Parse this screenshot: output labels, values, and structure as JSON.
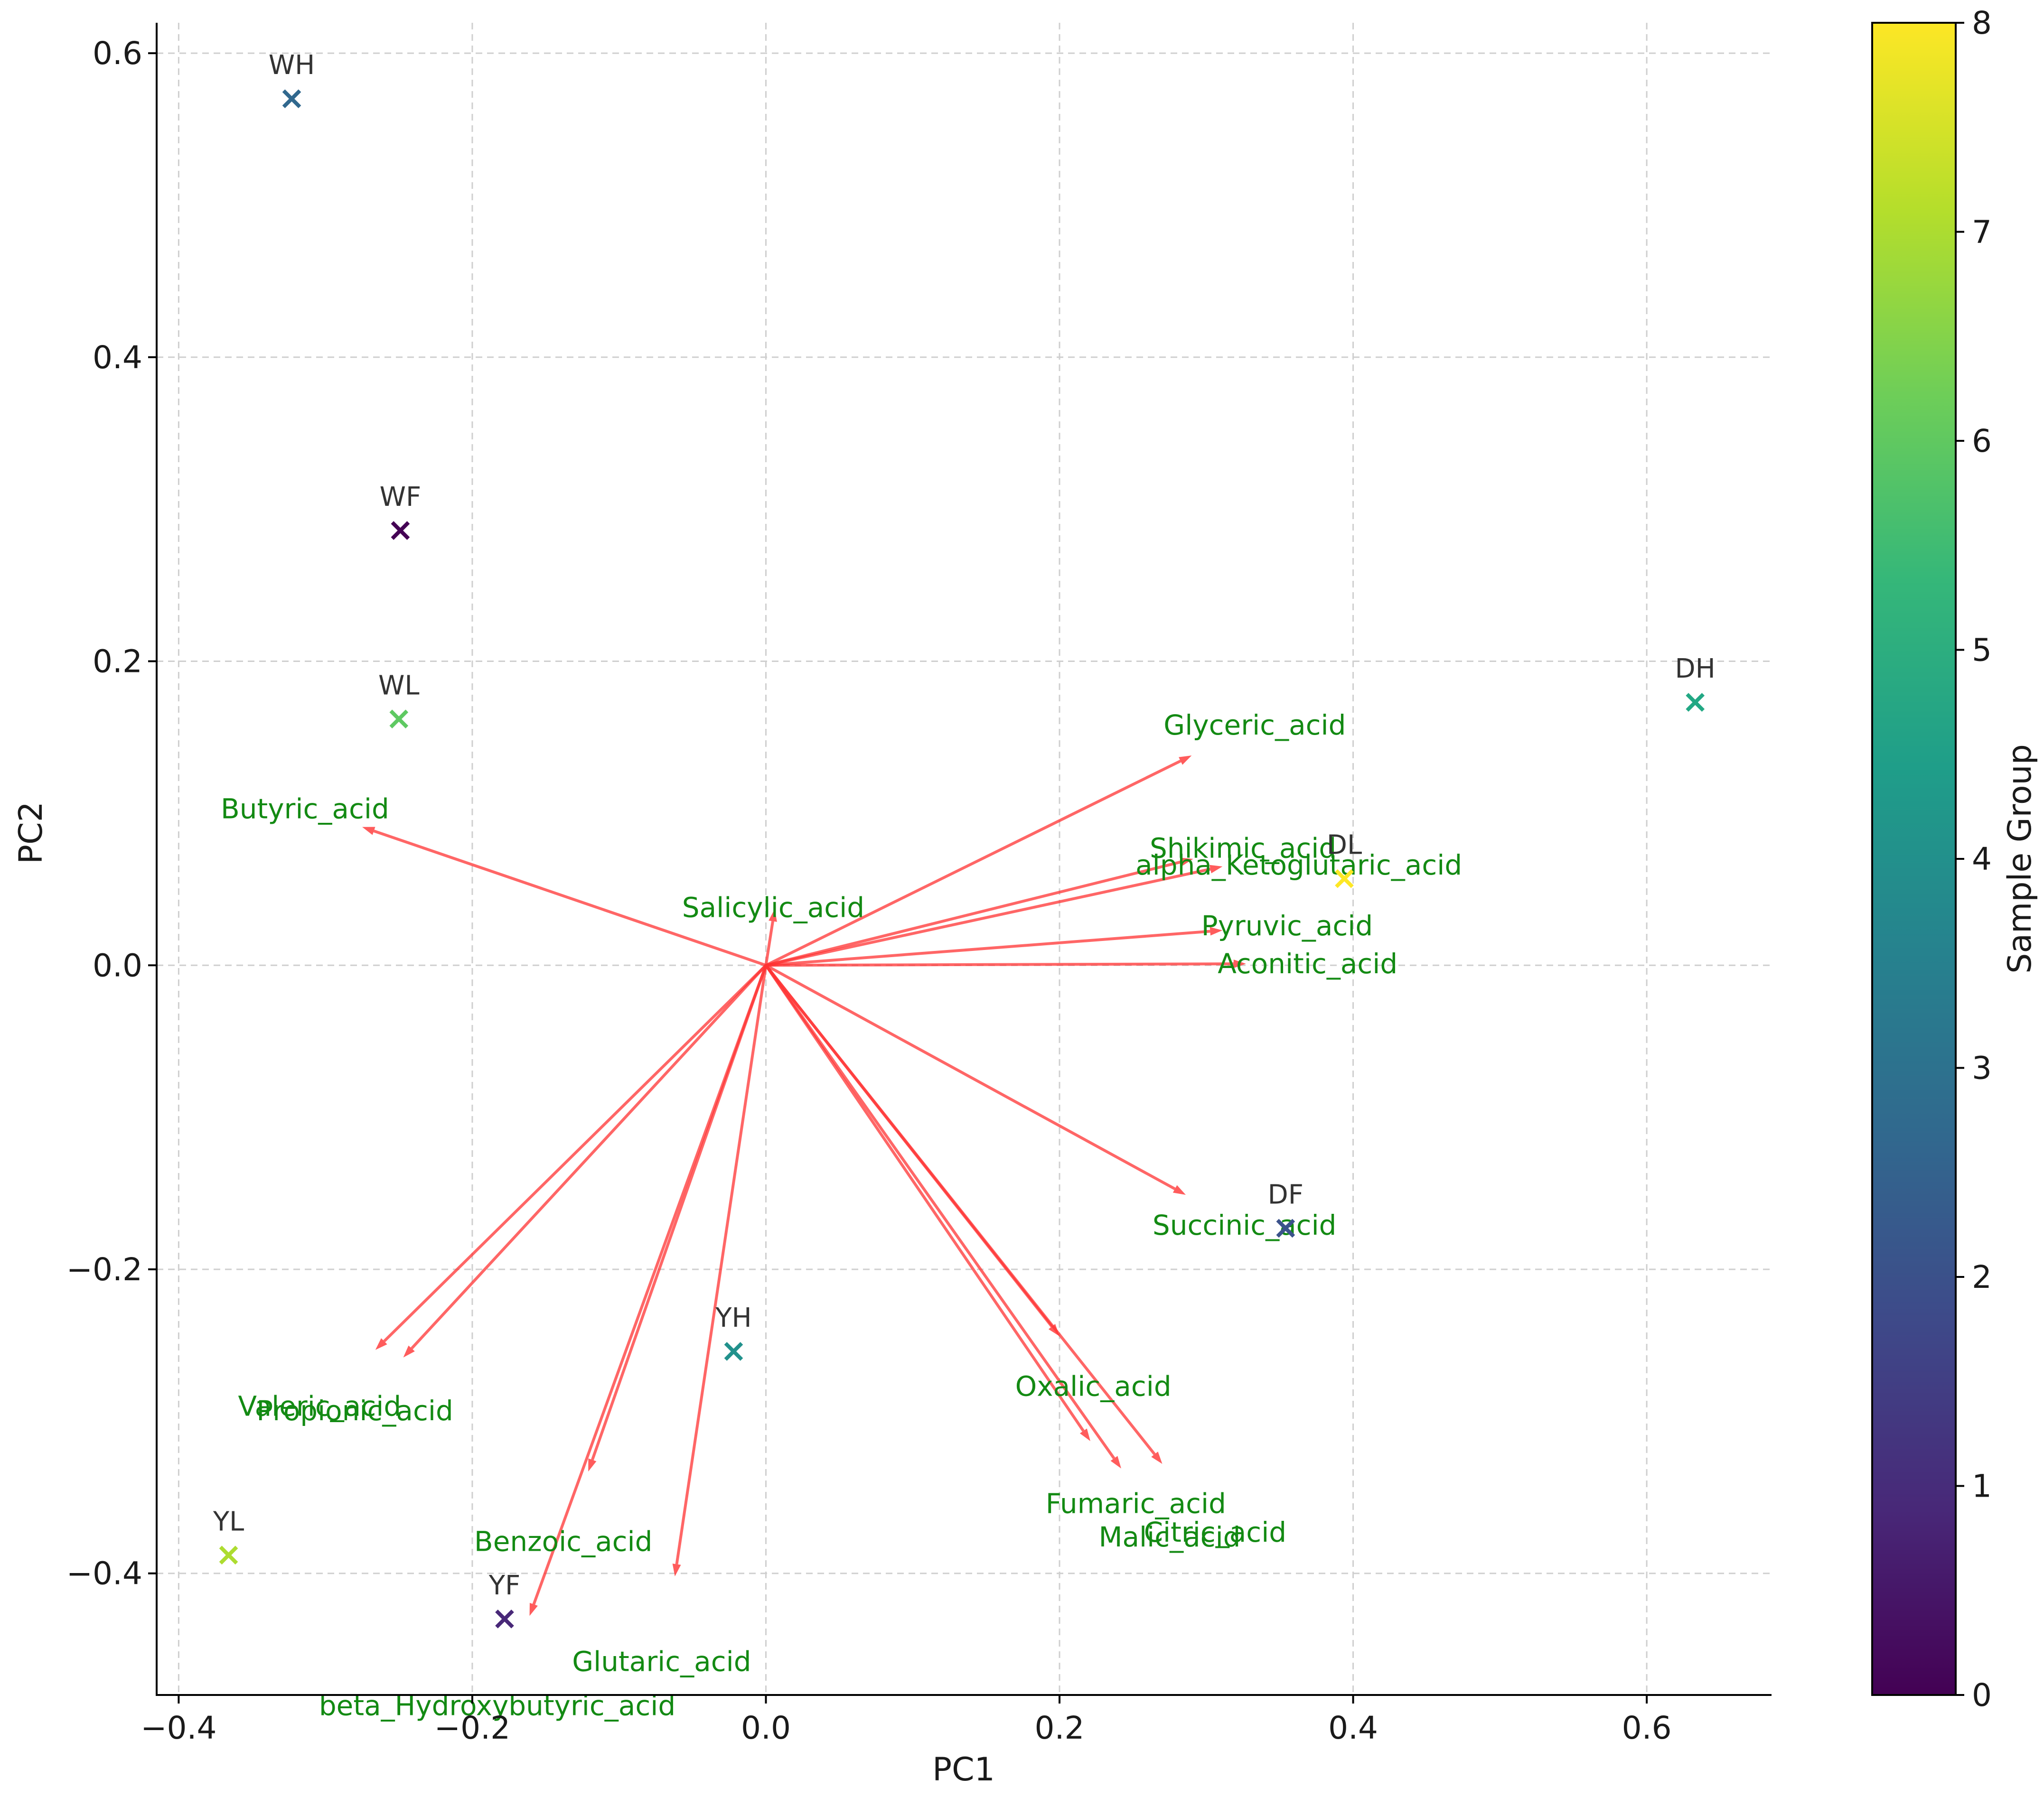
{
  "chart_data": {
    "type": "scatter",
    "title": "",
    "xlabel": "PC1",
    "ylabel": "PC2",
    "xlim": [
      -0.415,
      0.685
    ],
    "ylim": [
      -0.48,
      0.62
    ],
    "xticks": [
      -0.4,
      -0.2,
      0.0,
      0.2,
      0.4,
      0.6
    ],
    "xtick_labels": [
      "−0.4",
      "−0.2",
      "0.0",
      "0.2",
      "0.4",
      "0.6"
    ],
    "yticks": [
      -0.4,
      -0.2,
      0.0,
      0.2,
      0.4,
      0.6
    ],
    "ytick_labels": [
      "−0.4",
      "−0.2",
      "0.0",
      "0.2",
      "0.4",
      "0.6"
    ],
    "grid": true,
    "samples": [
      {
        "label": "WH",
        "x": -0.323,
        "y": 0.57,
        "group": 3,
        "color": "#31688e"
      },
      {
        "label": "WF",
        "x": -0.249,
        "y": 0.286,
        "group": 0,
        "color": "#440154"
      },
      {
        "label": "WL",
        "x": -0.25,
        "y": 0.162,
        "group": 6,
        "color": "#5ec962"
      },
      {
        "label": "DH",
        "x": 0.633,
        "y": 0.173,
        "group": 5,
        "color": "#22a884"
      },
      {
        "label": "DL",
        "x": 0.394,
        "y": 0.057,
        "group": 8,
        "color": "#fde725"
      },
      {
        "label": "DF",
        "x": 0.354,
        "y": -0.173,
        "group": 2,
        "color": "#3b528b"
      },
      {
        "label": "YH",
        "x": -0.022,
        "y": -0.254,
        "group": 4,
        "color": "#21918c"
      },
      {
        "label": "YL",
        "x": -0.366,
        "y": -0.388,
        "group": 7,
        "color": "#addc30"
      },
      {
        "label": "YF",
        "x": -0.178,
        "y": -0.43,
        "group": 1,
        "color": "#482878"
      }
    ],
    "loadings": [
      {
        "label": "Glyceric_acid",
        "x": 0.29,
        "y": 0.138,
        "tx": 0.333,
        "ty": 0.158
      },
      {
        "label": "Butyric_acid",
        "x": -0.275,
        "y": 0.091,
        "tx": -0.314,
        "ty": 0.103
      },
      {
        "label": "Shikimic_acid",
        "x": 0.291,
        "y": 0.07,
        "tx": 0.325,
        "ty": 0.077
      },
      {
        "label": "alpha_Ketoglutaric_acid",
        "x": 0.311,
        "y": 0.065,
        "tx": 0.363,
        "ty": 0.066
      },
      {
        "label": "Salicylic_acid",
        "x": 0.006,
        "y": 0.037,
        "tx": 0.005,
        "ty": 0.038
      },
      {
        "label": "Pyruvic_acid",
        "x": 0.311,
        "y": 0.023,
        "tx": 0.355,
        "ty": 0.026
      },
      {
        "label": "Aconitic_acid",
        "x": 0.327,
        "y": 0.001,
        "tx": 0.369,
        "ty": 0.001
      },
      {
        "label": "Succinic_acid",
        "x": 0.286,
        "y": -0.151,
        "tx": 0.326,
        "ty": -0.171
      },
      {
        "label": "Oxalic_acid",
        "x": 0.2,
        "y": -0.244,
        "tx": 0.223,
        "ty": -0.277
      },
      {
        "label": "Fumaric_acid",
        "x": 0.221,
        "y": -0.313,
        "tx": 0.252,
        "ty": -0.354
      },
      {
        "label": "Citric_acid",
        "x": 0.27,
        "y": -0.328,
        "tx": 0.306,
        "ty": -0.373
      },
      {
        "label": "Malic_acid",
        "x": 0.242,
        "y": -0.331,
        "tx": 0.275,
        "ty": -0.376
      },
      {
        "label": "Valeric_acid",
        "x": -0.266,
        "y": -0.253,
        "tx": -0.304,
        "ty": -0.29
      },
      {
        "label": "Propionic_acid",
        "x": -0.247,
        "y": -0.258,
        "tx": -0.28,
        "ty": -0.293
      },
      {
        "label": "Benzoic_acid",
        "x": -0.121,
        "y": -0.333,
        "tx": -0.138,
        "ty": -0.379
      },
      {
        "label": "Glutaric_acid",
        "x": -0.062,
        "y": -0.402,
        "tx": -0.071,
        "ty": -0.458
      },
      {
        "label": "beta_Hydroxybutyric_acid",
        "x": -0.161,
        "y": -0.428,
        "tx": -0.183,
        "ty": -0.487
      }
    ],
    "colorbar": {
      "label": "Sample Group",
      "colormap": "viridis",
      "range": [
        0,
        8
      ],
      "ticks": [
        0,
        1,
        2,
        3,
        4,
        5,
        6,
        7,
        8
      ],
      "tick_labels": [
        "0",
        "1",
        "2",
        "3",
        "4",
        "5",
        "6",
        "7",
        "8"
      ],
      "stops": [
        "#440154",
        "#482878",
        "#3e4989",
        "#31688e",
        "#26828e",
        "#1f9e89",
        "#35b779",
        "#6ece58",
        "#b5de2b",
        "#fde725"
      ]
    },
    "colors": {
      "arrow": "#ff3333",
      "loading_text": "#138a13",
      "sample_text": "#333333"
    }
  }
}
